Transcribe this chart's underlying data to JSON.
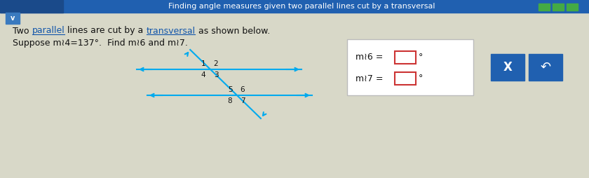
{
  "title": "Finding angle measures given two parallel lines cut by a transversal",
  "title_bg": "#2060b0",
  "title_color": "#ffffff",
  "title_left_bg": "#1a4a8a",
  "body_bg": "#d8d8c8",
  "line_color": "#00aaee",
  "transversal_color": "#00aaee",
  "answer_box_bg": "#ffffff",
  "answer_box_border": "#bbbbbb",
  "input_box_border": "#cc3333",
  "button_bg": "#2060b0",
  "button_x_label": "X",
  "button_undo_label": "↶",
  "angle6_label": "m≀6 =",
  "angle7_label": "m≀7 =",
  "degree_symbol": "°",
  "text1_plain": "Two ",
  "text1_ul1": "parallel",
  "text1_mid": " lines are cut by a ",
  "text1_ul2": "transversal",
  "text1_end": " as shown below.",
  "text2": "Suppose m≀4=137°.  Find m≀6 and m≀7.",
  "text_color": "#111111",
  "link_color": "#1155aa",
  "green_box_color": "#44aa44",
  "chevron_bg": "#3a7abf",
  "upper_labels": [
    "1",
    "2",
    "4",
    "3"
  ],
  "lower_labels": [
    "5",
    "6",
    "8",
    "7"
  ],
  "label_color": "#111111",
  "label_fontsize": 7.5,
  "fs_title": 8.0,
  "fs_body": 9.0
}
